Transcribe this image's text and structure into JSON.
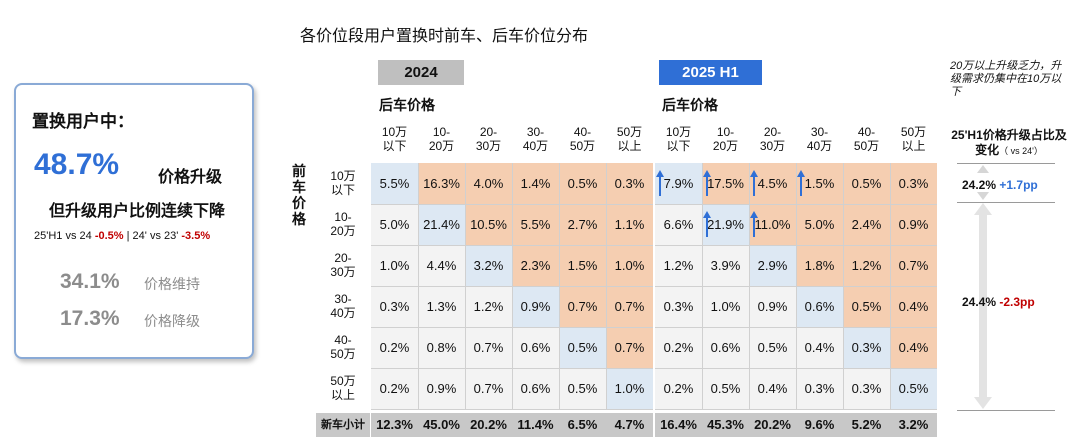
{
  "title": "各价位段用户置换时前车、后车价位分布",
  "summary": {
    "heading": "置换用户中：",
    "upgrade_value": "48.7%",
    "upgrade_label": "价格升级",
    "decline_note": "但升级用户比例连续下降",
    "compare_a_prefix": "25'H1 vs 24 ",
    "compare_a_value": "-0.5%",
    "compare_sep": " | ",
    "compare_b_prefix": "24' vs 23' ",
    "compare_b_value": "-3.5%",
    "maintain_value": "34.1%",
    "maintain_label": "价格维持",
    "downgrade_value": "17.3%",
    "downgrade_label": "价格降级"
  },
  "colors": {
    "accent_blue": "#2f6fd6",
    "negative_red": "#c00000",
    "diagonal_fill": "#dde8f3",
    "upgrade_fill": "#f5ceb1",
    "neutral_fill": "#f3f3f3",
    "total_fill": "#c8c8c8"
  },
  "side": {
    "note": "20万以上升级乏力，升级需求仍集中在10万以下",
    "header": "25'H1价格升级占比及变化",
    "header_small": "（ vs 24'）",
    "item1_value": "24.2%",
    "item1_change": "+1.7pp",
    "item2_value": "24.4%",
    "item2_change": "-2.3pp"
  },
  "chart_data": {
    "type": "heatmap",
    "title": "各价位段用户置换时前车、后车价位分布",
    "row_axis_label": "前车价格",
    "col_axis_label": "后车价格",
    "row_categories": [
      "10万以下",
      "10-20万",
      "20-30万",
      "30-40万",
      "40-50万",
      "50万以上"
    ],
    "col_categories": [
      "10万以下",
      "10-20万",
      "20-30万",
      "30-40万",
      "40-50万",
      "50万以上"
    ],
    "total_label": "新车小计",
    "panels": [
      {
        "name": "2024",
        "values": [
          [
            "5.5%",
            "16.3%",
            "4.0%",
            "1.4%",
            "0.5%",
            "0.3%"
          ],
          [
            "5.0%",
            "21.4%",
            "10.5%",
            "5.5%",
            "2.7%",
            "1.1%"
          ],
          [
            "1.0%",
            "4.4%",
            "3.2%",
            "2.3%",
            "1.5%",
            "1.0%"
          ],
          [
            "0.3%",
            "1.3%",
            "1.2%",
            "0.9%",
            "0.7%",
            "0.7%"
          ],
          [
            "0.2%",
            "0.8%",
            "0.7%",
            "0.6%",
            "0.5%",
            "0.7%"
          ],
          [
            "0.2%",
            "0.9%",
            "0.7%",
            "0.6%",
            "0.5%",
            "1.0%"
          ]
        ],
        "totals": [
          "12.3%",
          "45.0%",
          "20.2%",
          "11.4%",
          "6.5%",
          "4.7%"
        ]
      },
      {
        "name": "2025 H1",
        "values": [
          [
            "7.9%",
            "17.5%",
            "4.5%",
            "1.5%",
            "0.5%",
            "0.3%"
          ],
          [
            "6.6%",
            "21.9%",
            "11.0%",
            "5.0%",
            "2.4%",
            "0.9%"
          ],
          [
            "1.2%",
            "3.9%",
            "2.9%",
            "1.8%",
            "1.2%",
            "0.7%"
          ],
          [
            "0.3%",
            "1.0%",
            "0.9%",
            "0.6%",
            "0.5%",
            "0.4%"
          ],
          [
            "0.2%",
            "0.6%",
            "0.5%",
            "0.4%",
            "0.3%",
            "0.4%"
          ],
          [
            "0.2%",
            "0.5%",
            "0.4%",
            "0.3%",
            "0.3%",
            "0.5%"
          ]
        ],
        "totals": [
          "16.4%",
          "45.3%",
          "20.2%",
          "9.6%",
          "5.2%",
          "3.2%"
        ]
      }
    ],
    "increase_markers": [
      [
        0,
        0
      ],
      [
        0,
        1
      ],
      [
        0,
        2
      ],
      [
        0,
        3
      ],
      [
        1,
        1
      ],
      [
        1,
        2
      ]
    ]
  }
}
